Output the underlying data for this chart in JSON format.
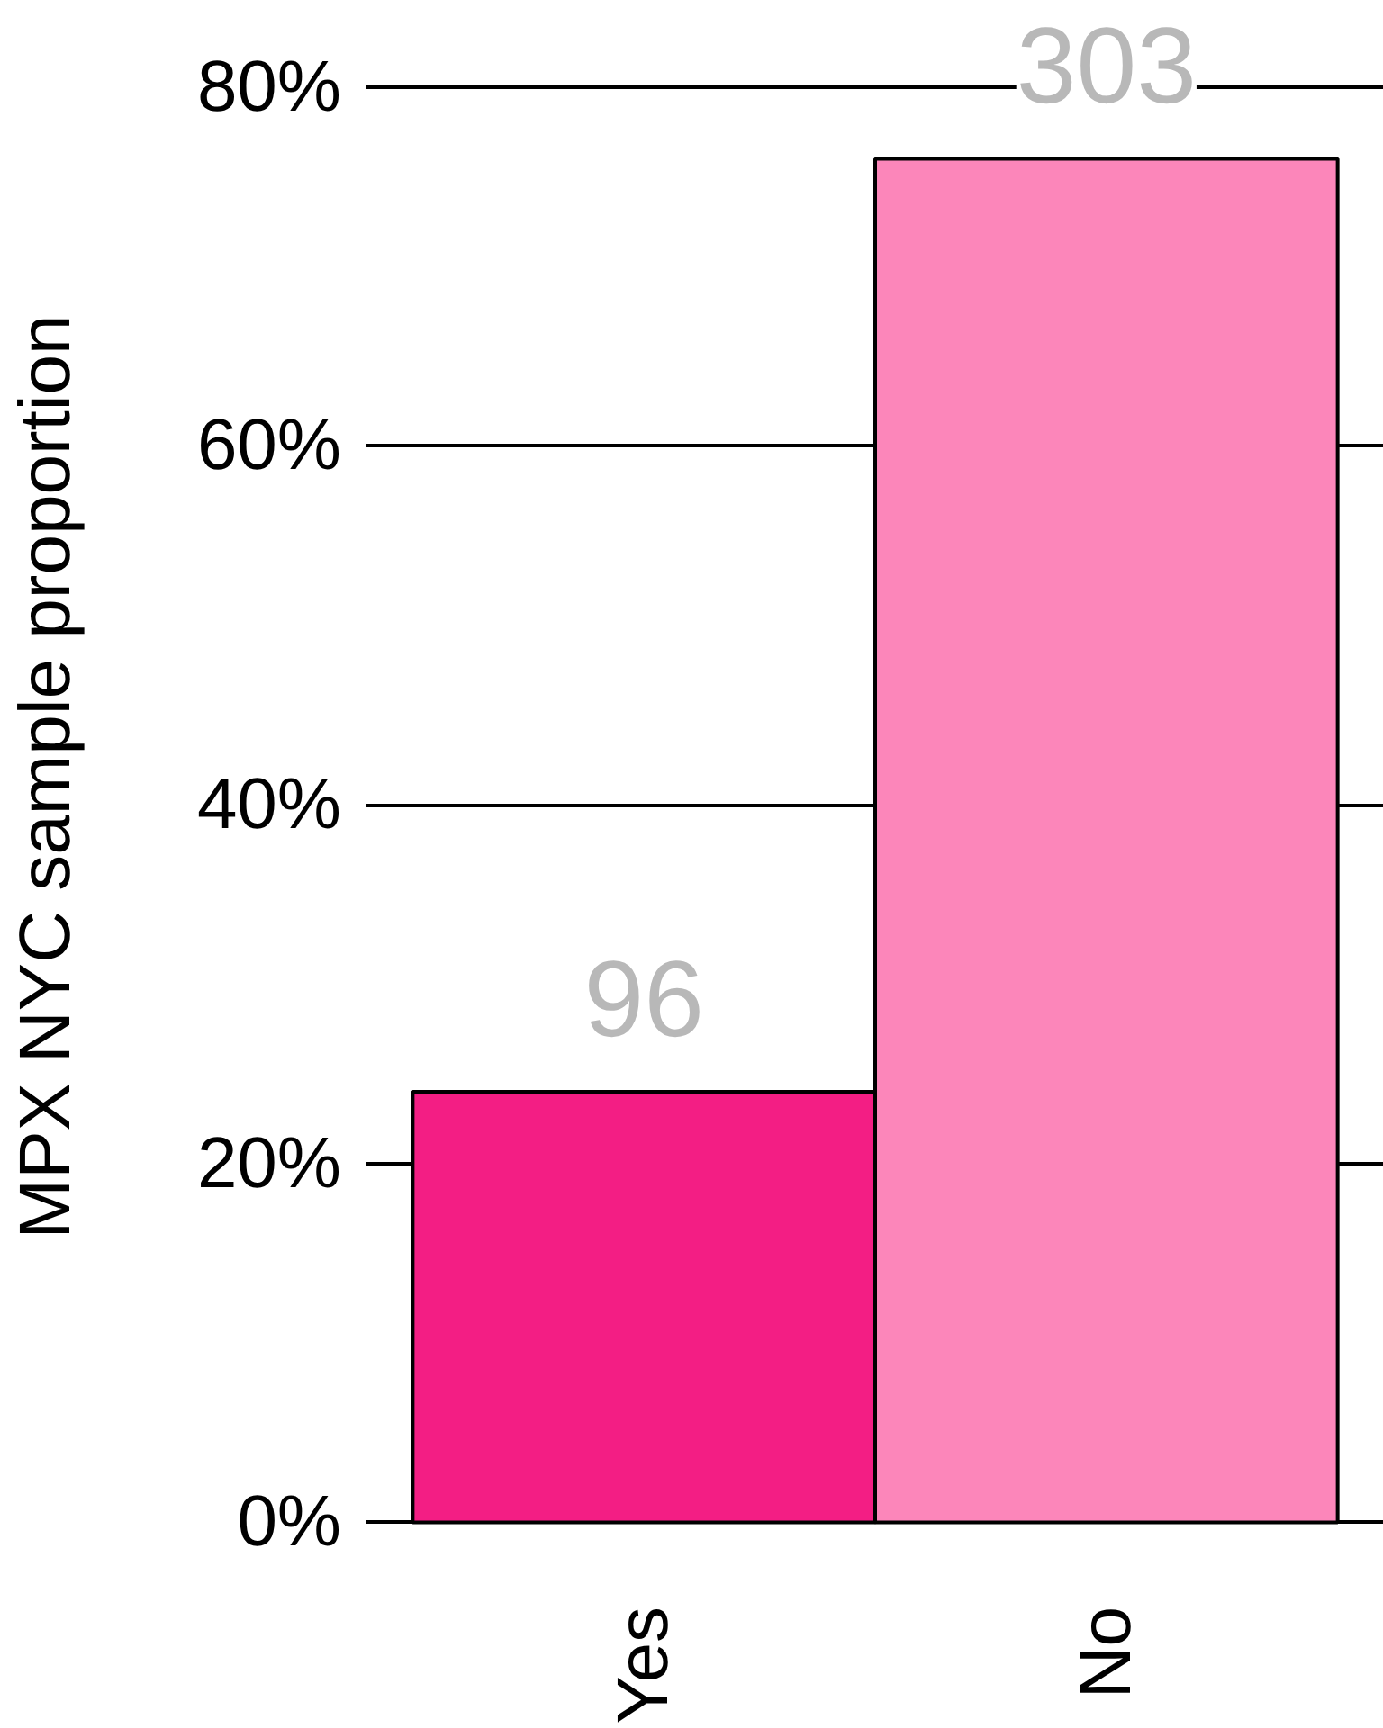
{
  "chart_data": {
    "type": "bar",
    "ylabel": "MPX NYC sample proportion",
    "categories": [
      "Yes",
      "No"
    ],
    "values": [
      24,
      76
    ],
    "colors": [
      "#f31e84",
      "#fc86ba"
    ],
    "annotations": [
      {
        "text": "96",
        "x": "Yes",
        "y": 24
      },
      {
        "text": "303",
        "x": "No",
        "y": 76
      }
    ],
    "ylim": [
      0,
      80
    ],
    "yticks": [
      {
        "value": 0,
        "label": "0%"
      },
      {
        "value": 20,
        "label": "20%"
      },
      {
        "value": 40,
        "label": "40%"
      },
      {
        "value": 60,
        "label": "60%"
      },
      {
        "value": 80,
        "label": "80%"
      }
    ],
    "grid": "y"
  }
}
